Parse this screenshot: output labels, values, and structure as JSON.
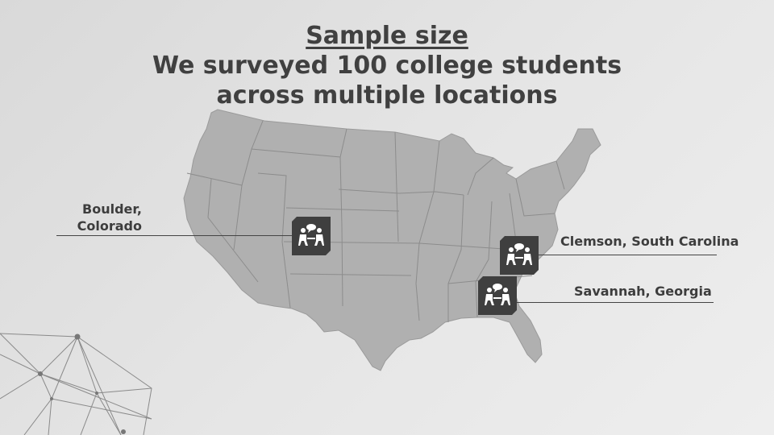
{
  "title": {
    "heading": "Sample size",
    "line1": "We surveyed 100 college students",
    "line2": "across multiple locations"
  },
  "locations": [
    {
      "name": "boulder",
      "label_line1": "Boulder,",
      "label_line2": "Colorado"
    },
    {
      "name": "clemson",
      "label": "Clemson, South Carolina"
    },
    {
      "name": "savannah",
      "label": "Savannah, Georgia"
    }
  ],
  "icons": {
    "marker": "people-talking-icon",
    "network": "network-mesh-decoration"
  },
  "colors": {
    "map_fill": "#b0b0b0",
    "map_borders": "#8c8c8c",
    "marker_bg": "#3f3f3f",
    "text": "#404040"
  }
}
